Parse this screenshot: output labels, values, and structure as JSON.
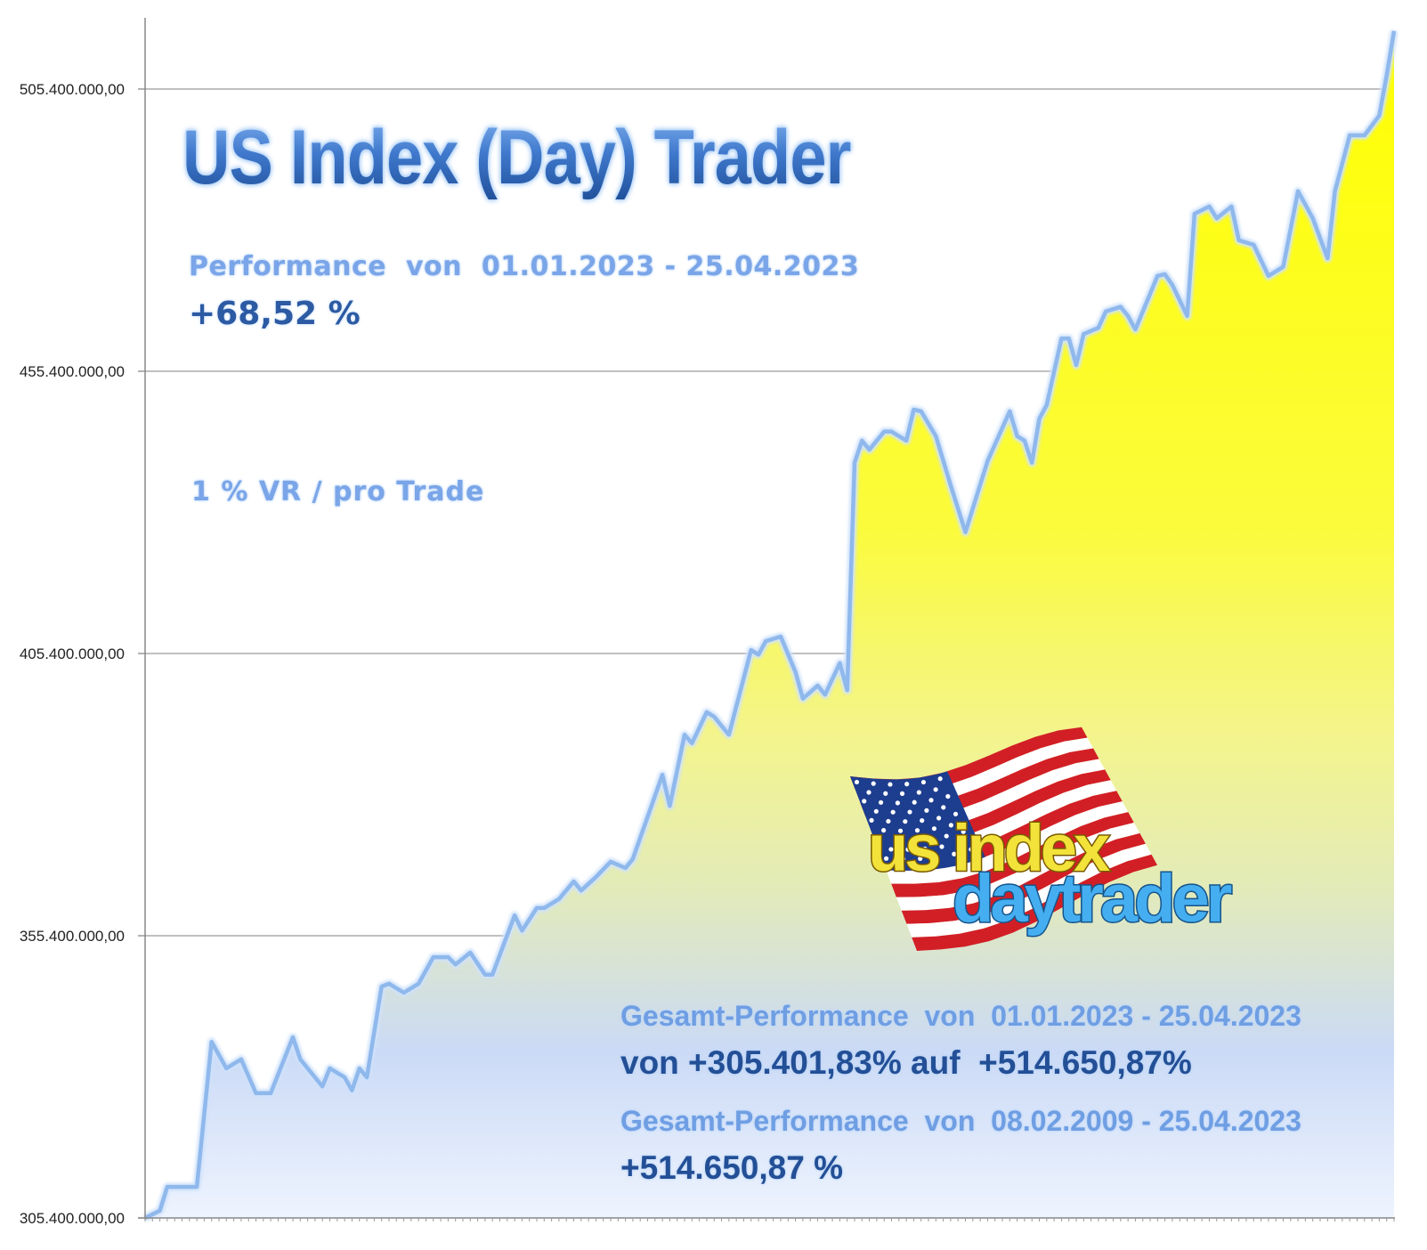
{
  "header": {
    "title": "US Index (Day) Trader",
    "performance_label": "Performance  von  01.01.2023 - 25.04.2023",
    "performance_value": "+68,52 %",
    "risk_note": "1 % VR / pro Trade"
  },
  "footer": {
    "total_label_2023": "Gesamt-Performance  von  01.01.2023 - 25.04.2023",
    "total_value_2023": "von +305.401,83% auf  +514.650,87%",
    "total_label_2009": "Gesamt-Performance  von  08.02.2009 - 25.04.2023",
    "total_value_2009": "+514.650,87 %"
  },
  "logo": {
    "line1": "us index",
    "line2": "daytrader"
  },
  "colors": {
    "fill_top": "#ffff00",
    "fill_bottom": "#e9f1fd",
    "line": "#8fb8ec",
    "grid": "#9a9a9a"
  },
  "chart_data": {
    "type": "area",
    "title": "US Index (Day) Trader",
    "xlabel": "",
    "ylabel": "",
    "ylim": [
      305400000,
      518000000
    ],
    "xlim": [
      0,
      169
    ],
    "grid": "horizontal",
    "legend": "none",
    "yticks": [
      305400000,
      355400000,
      405400000,
      455400000,
      505400000
    ],
    "ytick_labels": [
      "305.400.000,00",
      "355.400.000,00",
      "405.400.000,00",
      "455.400.000,00",
      "505.400.000,00"
    ],
    "x": [
      0,
      2,
      3,
      7,
      9,
      11,
      13,
      15,
      17,
      20,
      21,
      24,
      25,
      27,
      28,
      29,
      30,
      32,
      33,
      35,
      37,
      39,
      41,
      42,
      44,
      46,
      47,
      50,
      51,
      53,
      54,
      56,
      58,
      59,
      61,
      63,
      65,
      66,
      70,
      71,
      73,
      74,
      76,
      77,
      79,
      82,
      83,
      84,
      86,
      88,
      89,
      91,
      92,
      94,
      95,
      96,
      97,
      98,
      100,
      101,
      103,
      104,
      105,
      107,
      109,
      111,
      114,
      117,
      118,
      119,
      120,
      121,
      122,
      124,
      125,
      126,
      127,
      129,
      130,
      132,
      133,
      134,
      137,
      138,
      139,
      141,
      142,
      144,
      145,
      147,
      148,
      150,
      152,
      154,
      156,
      158,
      160,
      161,
      163,
      165,
      167,
      168,
      169
    ],
    "values_millions": [
      305.4,
      306.7,
      310.9,
      310.9,
      336.6,
      331.9,
      333.5,
      327.5,
      327.5,
      337.4,
      333.5,
      328.7,
      331.9,
      330.3,
      328.0,
      331.9,
      330.3,
      346.4,
      346.9,
      345.3,
      346.9,
      351.6,
      351.6,
      350.3,
      352.4,
      348.5,
      348.5,
      359.0,
      356.3,
      360.3,
      360.3,
      361.9,
      365.0,
      363.4,
      365.8,
      368.5,
      367.4,
      369.0,
      383.9,
      378.4,
      391.0,
      389.5,
      395.0,
      394.2,
      391.0,
      406.0,
      405.2,
      407.6,
      408.4,
      402.1,
      397.4,
      399.7,
      398.1,
      403.7,
      398.9,
      439.2,
      443.1,
      441.5,
      444.7,
      444.7,
      443.1,
      448.6,
      448.3,
      443.9,
      435.2,
      426.9,
      439.5,
      448.3,
      443.9,
      443.1,
      439.2,
      447.0,
      449.4,
      461.2,
      461.2,
      456.5,
      462.0,
      463.1,
      466.0,
      466.8,
      465.2,
      462.8,
      472.3,
      472.6,
      470.7,
      465.2,
      483.3,
      484.6,
      482.5,
      484.6,
      478.6,
      477.8,
      472.3,
      473.9,
      487.3,
      482.5,
      475.4,
      487.3,
      497.2,
      497.2,
      500.7,
      507.8,
      515.7
    ]
  }
}
